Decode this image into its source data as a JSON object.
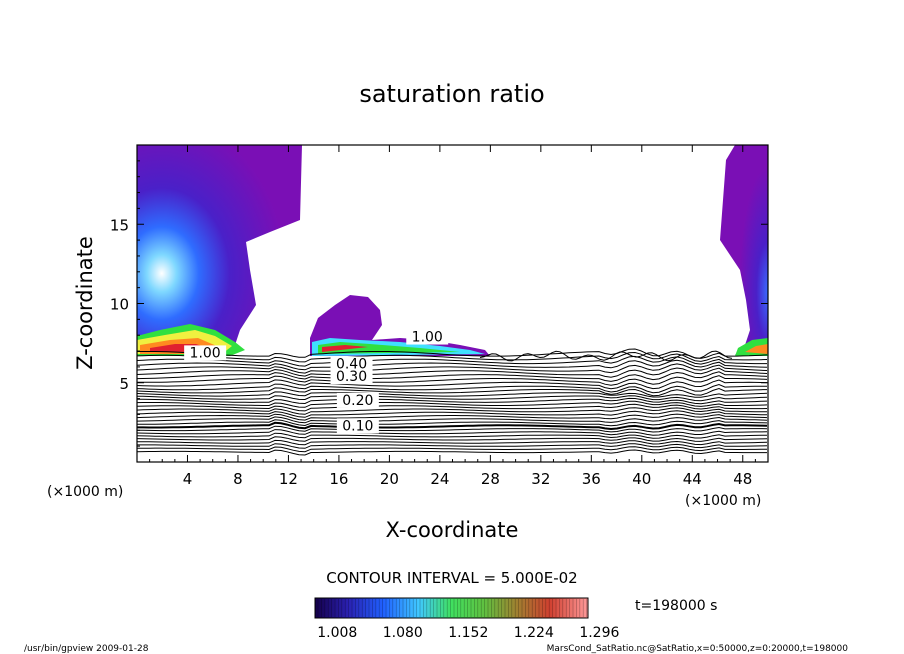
{
  "chart_data": {
    "type": "heatmap",
    "title": "saturation ratio",
    "xlabel": "X-coordinate",
    "ylabel": "Z-coordinate",
    "x_unit": "(×1000 m)",
    "z_unit": "(×1000 m)",
    "xlim": [
      0,
      50
    ],
    "ylim": [
      0,
      20
    ],
    "x_ticks": [
      4,
      8,
      12,
      16,
      20,
      24,
      28,
      32,
      36,
      40,
      44,
      48
    ],
    "y_ticks": [
      5,
      10,
      15
    ],
    "contour_interval_text": "CONTOUR INTERVAL = 5.000E-02",
    "contour_labels": [
      {
        "text": "1.00",
        "x": 5.4,
        "z": 6.6
      },
      {
        "text": "1.00",
        "x": 23.0,
        "z": 7.6
      },
      {
        "text": "0.40",
        "x": 17.0,
        "z": 5.9
      },
      {
        "text": "0.30",
        "x": 17.0,
        "z": 5.1
      },
      {
        "text": "0.20",
        "x": 17.5,
        "z": 3.6
      },
      {
        "text": "0.10",
        "x": 17.5,
        "z": 2.0
      }
    ],
    "colorbar_labels": [
      "1.008",
      "1.080",
      "1.152",
      "1.224",
      "1.296"
    ],
    "colorbar_range": [
      1.0,
      1.3
    ],
    "time_label": "t=198000 s"
  },
  "footer": {
    "left": "/usr/bin/gpview   2009-01-28",
    "right": "MarsCond_SatRatio.nc@SatRatio,x=0:50000,z=0:20000,t=198000"
  },
  "colors": {
    "purple": "#7a0fb5",
    "blue": "#1f3cff",
    "cyan": "#6fe3ff",
    "green": "#30e040",
    "yellow": "#f0f040",
    "orange": "#ff8a20",
    "red": "#e02030"
  }
}
